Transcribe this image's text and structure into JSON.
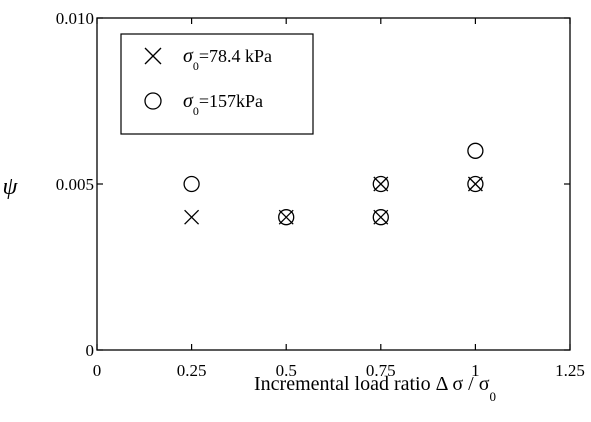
{
  "chart_data": {
    "type": "scatter",
    "title": "",
    "xlabel": "Incremental load ratio Δ σ / σ",
    "xlabel_subscript": "0",
    "ylabel": "ψ",
    "xlim": [
      0,
      1.25
    ],
    "ylim": [
      0,
      0.01
    ],
    "x_ticks": [
      {
        "value": 0,
        "label": "0"
      },
      {
        "value": 0.25,
        "label": "0.25"
      },
      {
        "value": 0.5,
        "label": "0.5"
      },
      {
        "value": 0.75,
        "label": "0.75"
      },
      {
        "value": 1,
        "label": "1"
      },
      {
        "value": 1.25,
        "label": "1.25"
      }
    ],
    "y_ticks": [
      {
        "value": 0,
        "label": "0"
      },
      {
        "value": 0.005,
        "label": "0.005"
      },
      {
        "value": 0.01,
        "label": "0.010"
      }
    ],
    "grid": false,
    "legend_position": "top-left",
    "series": [
      {
        "name": "σ0=78.4 kPa",
        "legend_symbol": "σ",
        "legend_subscript": "0",
        "legend_value": "=78.4 kPa",
        "marker": "x",
        "points": [
          {
            "x": 0.25,
            "y": 0.004
          },
          {
            "x": 0.5,
            "y": 0.004
          },
          {
            "x": 0.75,
            "y": 0.004
          },
          {
            "x": 0.75,
            "y": 0.005
          },
          {
            "x": 1.0,
            "y": 0.005
          }
        ]
      },
      {
        "name": "σ0=157kPa",
        "legend_symbol": "σ",
        "legend_subscript": "0",
        "legend_value": "=157kPa",
        "marker": "circle",
        "points": [
          {
            "x": 0.25,
            "y": 0.005
          },
          {
            "x": 0.5,
            "y": 0.004
          },
          {
            "x": 0.75,
            "y": 0.004
          },
          {
            "x": 0.75,
            "y": 0.005
          },
          {
            "x": 1.0,
            "y": 0.005
          },
          {
            "x": 1.0,
            "y": 0.006
          }
        ]
      }
    ]
  }
}
